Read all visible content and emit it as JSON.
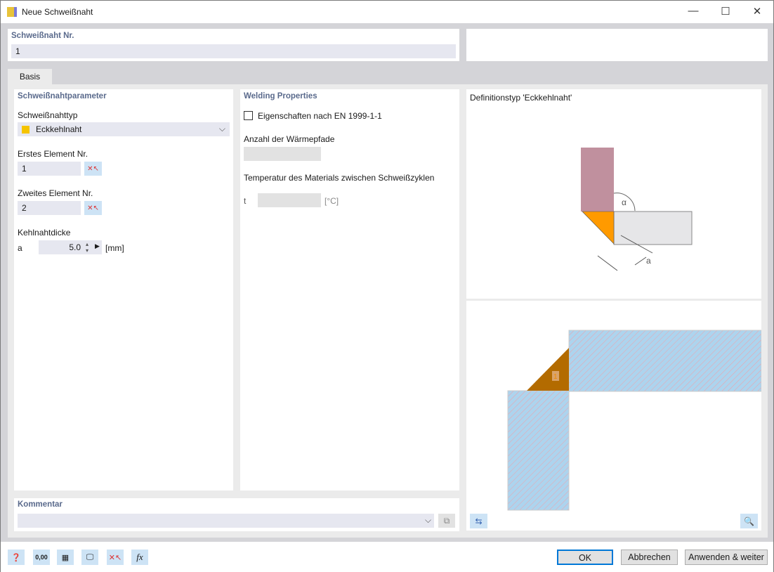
{
  "window": {
    "title": "Neue Schweißnaht",
    "minimize": "—",
    "maximize": "☐",
    "close": "✕"
  },
  "header": {
    "nr_label": "Schweißnaht Nr.",
    "nr_value": "1"
  },
  "tabs": [
    {
      "label": "Basis"
    }
  ],
  "params": {
    "title": "Schweißnahtparameter",
    "type_label": "Schweißnahttyp",
    "type_value": "Eckkehlnaht",
    "type_color": "#f5c400",
    "first_label": "Erstes Element Nr.",
    "first_value": "1",
    "second_label": "Zweites Element Nr.",
    "second_value": "2",
    "thick_label": "Kehlnahtdicke",
    "thick_symbol": "a",
    "thick_value": "5.0",
    "thick_unit": "[mm]"
  },
  "welding": {
    "title": "Welding Properties",
    "en_checkbox": "Eigenschaften nach EN 1999-1-1",
    "en_checked": false,
    "heat_label": "Anzahl der Wärmepfade",
    "heat_value": "",
    "temp_label": "Temperatur des Materials zwischen Schweißzyklen",
    "temp_symbol": "t",
    "temp_value": "",
    "temp_unit": "[°C]"
  },
  "diagram": {
    "title": "Definitionstyp 'Eckkehlnaht'",
    "alpha": "α",
    "a": "a",
    "weld_number": "1"
  },
  "comment": {
    "label": "Kommentar",
    "value": ""
  },
  "footer": {
    "ok": "OK",
    "cancel": "Abbrechen",
    "apply": "Anwenden & weiter",
    "decimal_icon_text": "0,00",
    "fx_icon_text": "fx"
  }
}
